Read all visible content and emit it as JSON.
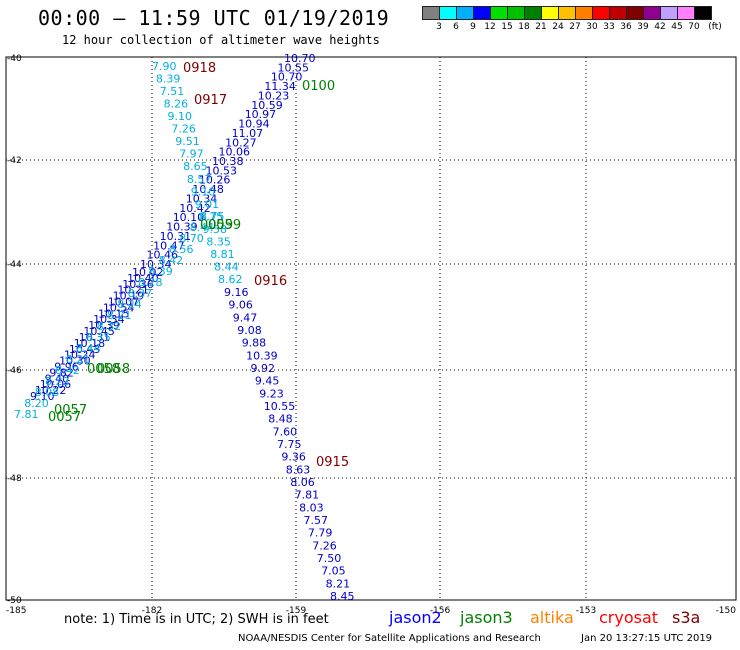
{
  "header": {
    "title": "00:00 – 11:59 UTC 01/19/2019",
    "subtitle": "12 hour collection of altimeter wave heights"
  },
  "colorbar": {
    "colors": [
      "#808080",
      "#00ffff",
      "#00b0ff",
      "#0000ff",
      "#00e000",
      "#00c000",
      "#008000",
      "#ffff00",
      "#ffc000",
      "#ff8000",
      "#ff0000",
      "#c00000",
      "#800000",
      "#900090",
      "#c0a0ff",
      "#ff80ff",
      "#000000"
    ],
    "labels": [
      "3",
      "6",
      "9",
      "12",
      "15",
      "18",
      "21",
      "24",
      "27",
      "30",
      "33",
      "36",
      "39",
      "42",
      "45",
      "70",
      "(ft)"
    ]
  },
  "map": {
    "lon_ticks": [
      "-185",
      "-182",
      "-159",
      "-156",
      "-153",
      "-150"
    ],
    "lat_ticks": [
      "-40",
      "-42",
      "-44",
      "-46",
      "-48",
      "-50"
    ],
    "time_labels": [
      {
        "text": "0918",
        "color": "#800000"
      },
      {
        "text": "0917",
        "color": "#800000"
      },
      {
        "text": "0916",
        "color": "#800000"
      },
      {
        "text": "0915",
        "color": "#800000"
      },
      {
        "text": "0100",
        "color": "#008000"
      },
      {
        "text": "0059",
        "color": "#008000"
      },
      {
        "text": "0059",
        "color": "#008000"
      },
      {
        "text": "0058",
        "color": "#008000"
      },
      {
        "text": "0058",
        "color": "#008000"
      },
      {
        "text": "0057",
        "color": "#008000"
      },
      {
        "text": "0057",
        "color": "#008000"
      }
    ],
    "track_jason2_upper": [
      "10.70",
      "10.55",
      "10.70",
      "11.34",
      "10.23",
      "10.59",
      "10.97",
      "10.94",
      "11.07",
      "10.27",
      "10.06",
      "10.38",
      "10.53",
      "10.26",
      "10.48",
      "10.34",
      "10.42",
      "10.10",
      "10.39",
      "10.31",
      "10.47",
      "10.46",
      "10.34"
    ],
    "track_jason2_lower": [
      "10.02",
      "10.40",
      "10.36",
      "10.21",
      "10.19",
      "10.07",
      "10.54",
      "10.15",
      "10.34",
      "10.39",
      "10.45",
      "10.31",
      "10.18",
      "10.43",
      "10.24",
      "10.30",
      "9.96",
      "9.82",
      "9.40",
      "10.06",
      "10.22",
      "9.10"
    ],
    "track_jason3": [
      "8.75",
      "8.44",
      "8.70",
      "8.56",
      "8.42",
      "8.39",
      "8.28",
      "8.37",
      "8.24",
      "8.21",
      "8.32",
      "8.35",
      "8.44",
      "8.21",
      "8.42",
      "8.22",
      "8.08",
      "8.20",
      "7.81"
    ],
    "track_cryosat_upper": [
      "7.90",
      "8.39",
      "7.51",
      "8.26",
      "9.10",
      "7.26",
      "9.51",
      "7.97",
      "8.65",
      "8.57",
      "9.10",
      "9.01",
      "8.75",
      "9.58",
      "8.35",
      "8.81",
      "8.44",
      "8.62"
    ],
    "track_cryosat_lower": [
      "9.16",
      "9.06",
      "9.47",
      "9.08",
      "9.88",
      "10.39",
      "9.92",
      "9.45",
      "9.23",
      "10.55",
      "8.48",
      "7.60",
      "7.75",
      "9.36",
      "8.63",
      "8.06",
      "7.81",
      "8.03",
      "7.57",
      "7.79",
      "7.26",
      "7.50",
      "7.05",
      "8.21",
      "8.45"
    ]
  },
  "legend": {
    "jason2": {
      "text": "jason2",
      "color": "#0000ff"
    },
    "jason3": {
      "text": "jason3",
      "color": "#008000"
    },
    "altika": {
      "text": "altika",
      "color": "#ff8000"
    },
    "cryosat": {
      "text": "cryosat",
      "color": "#ff0000"
    },
    "s3a": {
      "text": "s3a",
      "color": "#800000"
    }
  },
  "footer": {
    "note": "note: 1) Time is in UTC; 2) SWH is in feet",
    "credit": "NOAA/NESDIS Center for Satellite Applications and Research",
    "timestamp": "Jan 20 13:27:15 UTC 2019"
  }
}
